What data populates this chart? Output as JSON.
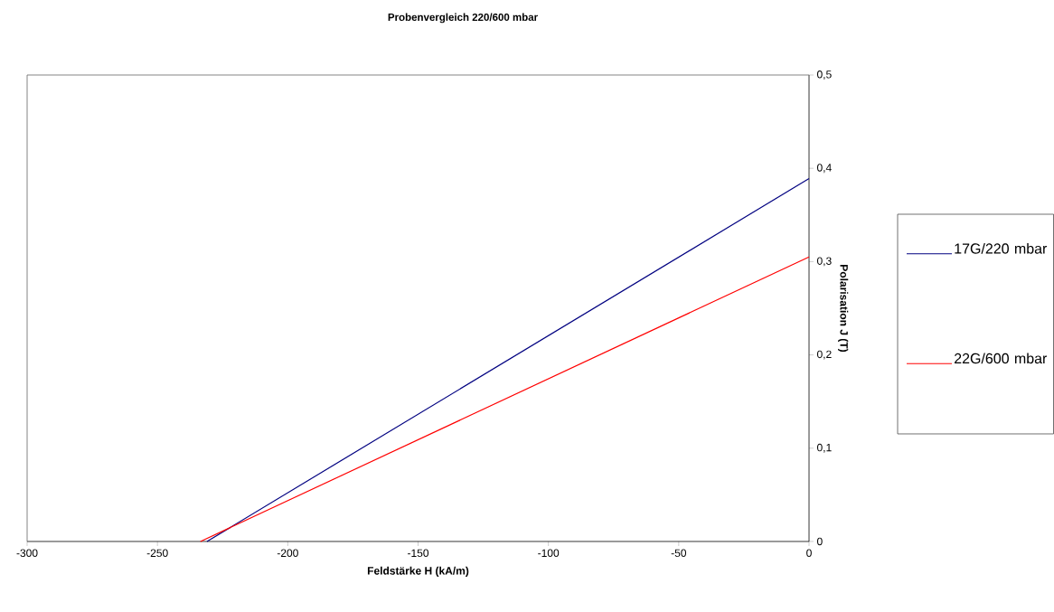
{
  "chart_data": {
    "type": "line",
    "title": "Probenvergleich 220/600 mbar",
    "xlabel": "Feldstärke H (kA/m)",
    "ylabel": "Polarisation J (T)",
    "xlim": [
      -300,
      0
    ],
    "ylim": [
      0,
      0.5
    ],
    "xticks": [
      -300,
      -250,
      -200,
      -150,
      -100,
      -50,
      0
    ],
    "yticks": [
      {
        "value": 0,
        "label": "0"
      },
      {
        "value": 0.1,
        "label": "0,1"
      },
      {
        "value": 0.2,
        "label": "0,2"
      },
      {
        "value": 0.3,
        "label": "0,3"
      },
      {
        "value": 0.4,
        "label": "0,4"
      },
      {
        "value": 0.5,
        "label": "0,5"
      }
    ],
    "series": [
      {
        "name": "17G/220 mbar",
        "color": "#000080",
        "x": [
          -231,
          0
        ],
        "values": [
          0,
          0.389
        ]
      },
      {
        "name": "22G/600 mbar",
        "color": "#ff0000",
        "x": [
          -233.5,
          0
        ],
        "values": [
          0,
          0.305
        ]
      }
    ],
    "legend": "right",
    "grid": false,
    "marker": "none",
    "line_style": "solid"
  }
}
